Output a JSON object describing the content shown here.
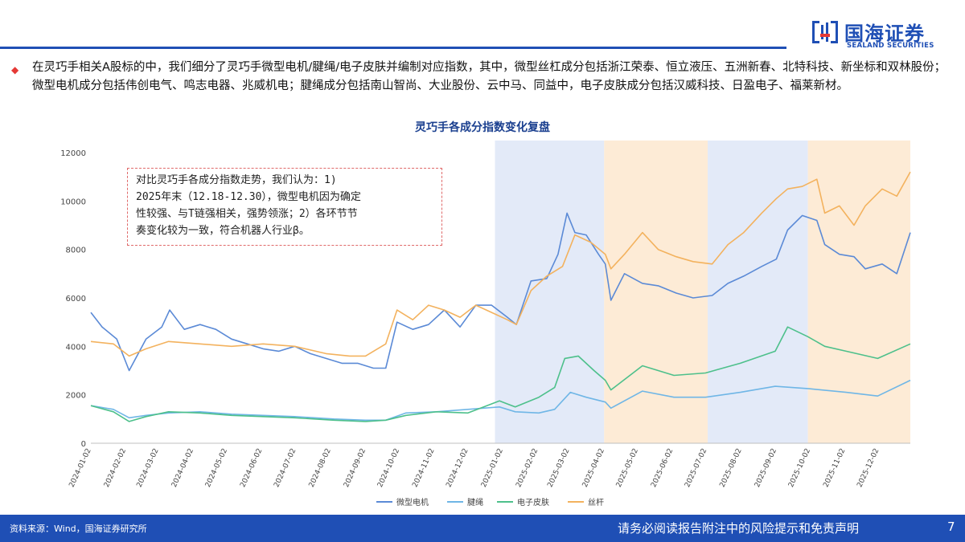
{
  "brand": {
    "name_cn": "国海证券",
    "name_en": "SEALAND SECURITIES",
    "primary_color": "#1f4fb5",
    "accent_color": "#e53935"
  },
  "intro_text": "在灵巧手相关A股标的中，我们细分了灵巧手微型电机/腱绳/电子皮肤并编制对应指数，其中，微型丝杠成分包括浙江荣泰、恒立液压、五洲新春、北特科技、新坐标和双林股份；微型电机成分包括伟创电气、鸣志电器、兆威机电；腱绳成分包括南山智尚、大业股份、云中马、同益中，电子皮肤成分包括汉威科技、日盈电子、福莱新材。",
  "annotation": {
    "lines": [
      "对比灵巧手各成分指数走势，我们认为：1)",
      "2025年末（12.18-12.30），微型电机因为确定",
      "性较强、与T链强相关，强势领涨；2）各环节节",
      "奏变化较为一致，符合机器人行业β。"
    ]
  },
  "footer": {
    "source": "资料来源：Wind，国海证券研究所",
    "disclaimer": "请务必阅读报告附注中的风险提示和免责声明",
    "page": "7"
  },
  "chart_data": {
    "type": "line",
    "title": "灵巧手各成分指数变化复盘",
    "xlabel": "",
    "ylabel": "",
    "ylim": [
      0,
      12000
    ],
    "yticks": [
      0,
      2000,
      4000,
      6000,
      8000,
      10000,
      12000
    ],
    "x_tick_labels": [
      "2024-01-02",
      "2024-02-02",
      "2024-03-02",
      "2024-04-02",
      "2024-05-02",
      "2024-06-02",
      "2024-07-02",
      "2024-08-02",
      "2024-09-02",
      "2024-10-02",
      "2024-11-02",
      "2024-12-02",
      "2025-01-02",
      "2025-02-02",
      "2025-03-02",
      "2025-04-02",
      "2025-05-02",
      "2025-06-02",
      "2025-07-02",
      "2025-08-02",
      "2025-09-02",
      "2025-10-02",
      "2025-11-02",
      "2025-12-02"
    ],
    "x_range": [
      "2024-01-02",
      "2025-12-30"
    ],
    "grid": false,
    "legend_position": "bottom",
    "shaded_periods": [
      {
        "start": "2024-12-26",
        "end": "2025-04-02",
        "color": "#e3eaf8"
      },
      {
        "start": "2025-04-02",
        "end": "2025-07-03",
        "color": "#fdebd6"
      },
      {
        "start": "2025-07-03",
        "end": "2025-09-30",
        "color": "#e3eaf8"
      },
      {
        "start": "2025-09-30",
        "end": "2025-12-30",
        "color": "#fdebd6"
      }
    ],
    "series": [
      {
        "name": "微型电机",
        "color": "#5b8ad6",
        "points": [
          [
            "2024-01-02",
            5400
          ],
          [
            "2024-01-12",
            4800
          ],
          [
            "2024-01-25",
            4300
          ],
          [
            "2024-02-05",
            3000
          ],
          [
            "2024-02-20",
            4300
          ],
          [
            "2024-03-05",
            4800
          ],
          [
            "2024-03-12",
            5500
          ],
          [
            "2024-03-25",
            4700
          ],
          [
            "2024-04-08",
            4900
          ],
          [
            "2024-04-22",
            4700
          ],
          [
            "2024-05-06",
            4300
          ],
          [
            "2024-05-20",
            4100
          ],
          [
            "2024-06-03",
            3900
          ],
          [
            "2024-06-17",
            3800
          ],
          [
            "2024-07-01",
            4000
          ],
          [
            "2024-07-15",
            3700
          ],
          [
            "2024-07-29",
            3500
          ],
          [
            "2024-08-12",
            3300
          ],
          [
            "2024-08-26",
            3300
          ],
          [
            "2024-09-09",
            3100
          ],
          [
            "2024-09-20",
            3100
          ],
          [
            "2024-09-30",
            5000
          ],
          [
            "2024-10-14",
            4700
          ],
          [
            "2024-10-28",
            4900
          ],
          [
            "2024-11-11",
            5500
          ],
          [
            "2024-11-25",
            4800
          ],
          [
            "2024-12-09",
            5700
          ],
          [
            "2024-12-23",
            5700
          ],
          [
            "2025-01-06",
            5200
          ],
          [
            "2025-01-14",
            4900
          ],
          [
            "2025-01-27",
            6700
          ],
          [
            "2025-02-10",
            6800
          ],
          [
            "2025-02-20",
            7800
          ],
          [
            "2025-02-28",
            9500
          ],
          [
            "2025-03-07",
            8700
          ],
          [
            "2025-03-17",
            8600
          ],
          [
            "2025-03-28",
            7800
          ],
          [
            "2025-04-03",
            7400
          ],
          [
            "2025-04-08",
            5900
          ],
          [
            "2025-04-20",
            7000
          ],
          [
            "2025-05-06",
            6600
          ],
          [
            "2025-05-20",
            6500
          ],
          [
            "2025-06-05",
            6200
          ],
          [
            "2025-06-20",
            6000
          ],
          [
            "2025-07-07",
            6100
          ],
          [
            "2025-07-21",
            6600
          ],
          [
            "2025-08-04",
            6900
          ],
          [
            "2025-08-20",
            7300
          ],
          [
            "2025-09-02",
            7600
          ],
          [
            "2025-09-12",
            8800
          ],
          [
            "2025-09-25",
            9400
          ],
          [
            "2025-10-08",
            9200
          ],
          [
            "2025-10-15",
            8200
          ],
          [
            "2025-10-28",
            7800
          ],
          [
            "2025-11-10",
            7700
          ],
          [
            "2025-11-20",
            7200
          ],
          [
            "2025-12-05",
            7400
          ],
          [
            "2025-12-18",
            7000
          ],
          [
            "2025-12-30",
            8700
          ]
        ]
      },
      {
        "name": "腱绳",
        "color": "#6fb6e6",
        "points": [
          [
            "2024-01-02",
            1550
          ],
          [
            "2024-01-22",
            1400
          ],
          [
            "2024-02-05",
            1050
          ],
          [
            "2024-02-20",
            1150
          ],
          [
            "2024-03-11",
            1250
          ],
          [
            "2024-04-08",
            1300
          ],
          [
            "2024-05-06",
            1200
          ],
          [
            "2024-06-03",
            1150
          ],
          [
            "2024-07-01",
            1100
          ],
          [
            "2024-08-05",
            1000
          ],
          [
            "2024-09-02",
            950
          ],
          [
            "2024-09-20",
            950
          ],
          [
            "2024-10-08",
            1250
          ],
          [
            "2024-11-04",
            1300
          ],
          [
            "2024-12-02",
            1400
          ],
          [
            "2024-12-30",
            1500
          ],
          [
            "2025-01-13",
            1300
          ],
          [
            "2025-02-03",
            1250
          ],
          [
            "2025-02-17",
            1400
          ],
          [
            "2025-03-03",
            2100
          ],
          [
            "2025-03-17",
            1900
          ],
          [
            "2025-04-03",
            1700
          ],
          [
            "2025-04-08",
            1450
          ],
          [
            "2025-05-06",
            2150
          ],
          [
            "2025-06-03",
            1900
          ],
          [
            "2025-07-01",
            1900
          ],
          [
            "2025-08-01",
            2100
          ],
          [
            "2025-09-01",
            2350
          ],
          [
            "2025-10-01",
            2250
          ],
          [
            "2025-11-03",
            2100
          ],
          [
            "2025-12-01",
            1950
          ],
          [
            "2025-12-30",
            2600
          ]
        ]
      },
      {
        "name": "电子皮肤",
        "color": "#4dc08b",
        "points": [
          [
            "2024-01-02",
            1550
          ],
          [
            "2024-01-22",
            1300
          ],
          [
            "2024-02-05",
            900
          ],
          [
            "2024-02-20",
            1100
          ],
          [
            "2024-03-11",
            1300
          ],
          [
            "2024-04-08",
            1250
          ],
          [
            "2024-05-06",
            1150
          ],
          [
            "2024-06-03",
            1100
          ],
          [
            "2024-07-01",
            1050
          ],
          [
            "2024-08-05",
            950
          ],
          [
            "2024-09-02",
            900
          ],
          [
            "2024-09-20",
            950
          ],
          [
            "2024-10-08",
            1150
          ],
          [
            "2024-11-04",
            1300
          ],
          [
            "2024-12-02",
            1250
          ],
          [
            "2024-12-30",
            1750
          ],
          [
            "2025-01-13",
            1500
          ],
          [
            "2025-02-03",
            1900
          ],
          [
            "2025-02-17",
            2300
          ],
          [
            "2025-02-26",
            3500
          ],
          [
            "2025-03-10",
            3600
          ],
          [
            "2025-03-24",
            3000
          ],
          [
            "2025-04-03",
            2600
          ],
          [
            "2025-04-08",
            2200
          ],
          [
            "2025-05-06",
            3200
          ],
          [
            "2025-06-03",
            2800
          ],
          [
            "2025-07-01",
            2900
          ],
          [
            "2025-08-01",
            3300
          ],
          [
            "2025-09-01",
            3800
          ],
          [
            "2025-09-12",
            4800
          ],
          [
            "2025-09-30",
            4400
          ],
          [
            "2025-10-15",
            4000
          ],
          [
            "2025-11-03",
            3800
          ],
          [
            "2025-12-01",
            3500
          ],
          [
            "2025-12-30",
            4100
          ]
        ]
      },
      {
        "name": "丝杆",
        "color": "#f3b25e",
        "points": [
          [
            "2024-01-02",
            4200
          ],
          [
            "2024-01-22",
            4100
          ],
          [
            "2024-02-05",
            3600
          ],
          [
            "2024-02-20",
            3900
          ],
          [
            "2024-03-11",
            4200
          ],
          [
            "2024-04-08",
            4100
          ],
          [
            "2024-05-06",
            4000
          ],
          [
            "2024-06-03",
            4100
          ],
          [
            "2024-07-01",
            4000
          ],
          [
            "2024-07-29",
            3700
          ],
          [
            "2024-08-19",
            3600
          ],
          [
            "2024-09-02",
            3600
          ],
          [
            "2024-09-20",
            4100
          ],
          [
            "2024-09-30",
            5500
          ],
          [
            "2024-10-14",
            5100
          ],
          [
            "2024-10-28",
            5700
          ],
          [
            "2024-11-11",
            5500
          ],
          [
            "2024-11-25",
            5200
          ],
          [
            "2024-12-09",
            5700
          ],
          [
            "2024-12-23",
            5400
          ],
          [
            "2025-01-06",
            5100
          ],
          [
            "2025-01-14",
            4900
          ],
          [
            "2025-01-27",
            6300
          ],
          [
            "2025-02-10",
            6900
          ],
          [
            "2025-02-24",
            7300
          ],
          [
            "2025-03-07",
            8600
          ],
          [
            "2025-03-21",
            8300
          ],
          [
            "2025-04-03",
            7800
          ],
          [
            "2025-04-08",
            7200
          ],
          [
            "2025-04-20",
            7800
          ],
          [
            "2025-05-06",
            8700
          ],
          [
            "2025-05-20",
            8000
          ],
          [
            "2025-06-05",
            7700
          ],
          [
            "2025-06-20",
            7500
          ],
          [
            "2025-07-07",
            7400
          ],
          [
            "2025-07-21",
            8200
          ],
          [
            "2025-08-04",
            8700
          ],
          [
            "2025-08-20",
            9500
          ],
          [
            "2025-09-02",
            10100
          ],
          [
            "2025-09-12",
            10500
          ],
          [
            "2025-09-25",
            10600
          ],
          [
            "2025-10-08",
            10900
          ],
          [
            "2025-10-15",
            9500
          ],
          [
            "2025-10-28",
            9800
          ],
          [
            "2025-11-10",
            9000
          ],
          [
            "2025-11-20",
            9800
          ],
          [
            "2025-12-05",
            10500
          ],
          [
            "2025-12-18",
            10200
          ],
          [
            "2025-12-30",
            11200
          ]
        ]
      }
    ]
  }
}
